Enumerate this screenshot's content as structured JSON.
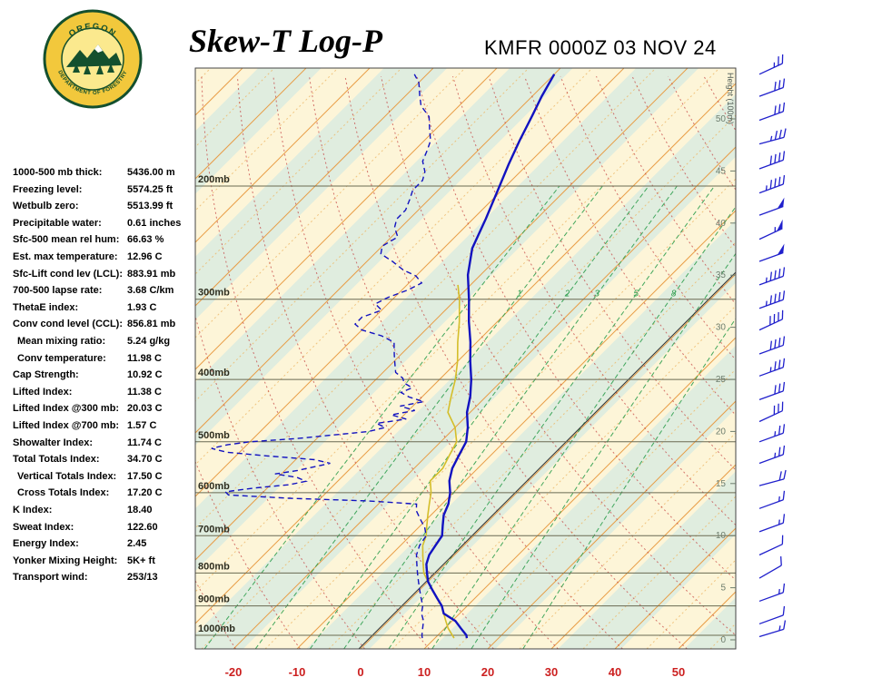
{
  "header": {
    "title": "Skew-T Log-P",
    "station": "KMFR 0000Z 03 NOV 24"
  },
  "logo": {
    "top_text": "OREGON",
    "bottom_text": "DEPARTMENT OF FORESTRY",
    "gold": "#f2c83c",
    "green": "#14502e"
  },
  "indices": [
    {
      "label": "1000-500 mb thick:",
      "value": "5436.00 m",
      "indent": false
    },
    {
      "label": "Freezing level:",
      "value": "5574.25 ft",
      "indent": false
    },
    {
      "label": "Wetbulb zero:",
      "value": "5513.99 ft",
      "indent": false
    },
    {
      "label": "Precipitable water:",
      "value": "0.61 inches",
      "indent": false
    },
    {
      "label": "Sfc-500 mean rel hum:",
      "value": "66.63 %",
      "indent": false
    },
    {
      "label": "Est. max temperature:",
      "value": "12.96 C",
      "indent": false
    },
    {
      "label": "Sfc-Lift cond lev (LCL):",
      "value": "883.91 mb",
      "indent": false
    },
    {
      "label": "700-500 lapse rate:",
      "value": "3.68 C/km",
      "indent": false
    },
    {
      "label": "ThetaE index:",
      "value": "1.93 C",
      "indent": false
    },
    {
      "label": "Conv cond level (CCL):",
      "value": "856.81 mb",
      "indent": false
    },
    {
      "label": "Mean mixing ratio:",
      "value": "5.24 g/kg",
      "indent": true
    },
    {
      "label": "Conv temperature:",
      "value": "11.98 C",
      "indent": true
    },
    {
      "label": "Cap Strength:",
      "value": "10.92 C",
      "indent": false
    },
    {
      "label": "Lifted Index:",
      "value": "11.38 C",
      "indent": false
    },
    {
      "label": "Lifted Index @300 mb:",
      "value": "20.03 C",
      "indent": false
    },
    {
      "label": "Lifted Index @700 mb:",
      "value": "1.57 C",
      "indent": false
    },
    {
      "label": "Showalter Index:",
      "value": "11.74 C",
      "indent": false
    },
    {
      "label": "Total Totals Index:",
      "value": "34.70 C",
      "indent": false
    },
    {
      "label": "Vertical Totals Index:",
      "value": "17.50 C",
      "indent": true
    },
    {
      "label": "Cross Totals Index:",
      "value": "17.20 C",
      "indent": true
    },
    {
      "label": "K Index:",
      "value": "18.40",
      "indent": false
    },
    {
      "label": "Sweat Index:",
      "value": "122.60",
      "indent": false
    },
    {
      "label": "Energy Index:",
      "value": "2.45",
      "indent": false
    },
    {
      "label": "Yonker Mixing Height:",
      "value": "5K+ ft",
      "indent": false
    },
    {
      "label": "Transport wind:",
      "value": "253/13",
      "indent": false
    }
  ],
  "chart_data": {
    "type": "skewt",
    "title": "Skew-T Log-P",
    "subtitle": "KMFR 0000Z 03 NOV 24",
    "pressure_levels": [
      200,
      300,
      400,
      500,
      600,
      700,
      800,
      900,
      1000
    ],
    "pressure_axis_labels": [
      "200mb",
      "300mb",
      "400mb",
      "500mb",
      "600mb",
      "700mb",
      "800mb",
      "900mb",
      "1000mb"
    ],
    "temp_axis": [
      -20,
      -10,
      0,
      10,
      20,
      30,
      40,
      50
    ],
    "height_axis": [
      50,
      45,
      40,
      35,
      30,
      25,
      20,
      15,
      10,
      5,
      0
    ],
    "height_axis_label": "Height (100m)",
    "isotherm_step": 5,
    "dry_adiabats_theta_k": {
      "min": 250,
      "max": 440,
      "step": 10
    },
    "mixing_ratio_lines": [
      0.5,
      1,
      2,
      3,
      5,
      8,
      12,
      20
    ],
    "mixing_ratio_labels": [
      1,
      2,
      3,
      5,
      8
    ],
    "temperature_profile": [
      [
        1010,
        15
      ],
      [
        1000,
        14.5
      ],
      [
        975,
        12.5
      ],
      [
        950,
        10.5
      ],
      [
        925,
        7.5
      ],
      [
        900,
        6
      ],
      [
        875,
        4
      ],
      [
        850,
        2
      ],
      [
        825,
        0
      ],
      [
        800,
        -1.5
      ],
      [
        775,
        -3
      ],
      [
        750,
        -4
      ],
      [
        725,
        -4.5
      ],
      [
        700,
        -5
      ],
      [
        675,
        -6.5
      ],
      [
        650,
        -8
      ],
      [
        625,
        -9
      ],
      [
        600,
        -10.5
      ],
      [
        575,
        -12.5
      ],
      [
        550,
        -14
      ],
      [
        525,
        -15
      ],
      [
        500,
        -16
      ],
      [
        475,
        -18
      ],
      [
        450,
        -20.5
      ],
      [
        425,
        -22.5
      ],
      [
        400,
        -25
      ],
      [
        375,
        -28
      ],
      [
        350,
        -31
      ],
      [
        325,
        -34.5
      ],
      [
        300,
        -38
      ],
      [
        275,
        -42
      ],
      [
        250,
        -45.5
      ],
      [
        225,
        -48
      ],
      [
        200,
        -51
      ],
      [
        185,
        -53
      ],
      [
        170,
        -55
      ],
      [
        155,
        -57
      ],
      [
        145,
        -58.5
      ],
      [
        134,
        -60
      ]
    ],
    "dewpoint_profile": [
      [
        1010,
        8
      ],
      [
        1000,
        7.5
      ],
      [
        975,
        6.5
      ],
      [
        950,
        5.5
      ],
      [
        925,
        4
      ],
      [
        900,
        3
      ],
      [
        875,
        1.5
      ],
      [
        850,
        0
      ],
      [
        825,
        -1.5
      ],
      [
        800,
        -3
      ],
      [
        775,
        -4.5
      ],
      [
        750,
        -6
      ],
      [
        725,
        -7
      ],
      [
        700,
        -7.5
      ],
      [
        680,
        -9
      ],
      [
        660,
        -11
      ],
      [
        640,
        -13
      ],
      [
        625,
        -14
      ],
      [
        618,
        -22
      ],
      [
        612,
        -35
      ],
      [
        605,
        -45
      ],
      [
        598,
        -46
      ],
      [
        590,
        -42
      ],
      [
        583,
        -37
      ],
      [
        576,
        -35
      ],
      [
        568,
        -37
      ],
      [
        561,
        -41
      ],
      [
        554,
        -38
      ],
      [
        547,
        -36
      ],
      [
        540,
        -34
      ],
      [
        533,
        -37
      ],
      [
        526,
        -45
      ],
      [
        519,
        -52
      ],
      [
        512,
        -55
      ],
      [
        505,
        -53
      ],
      [
        500,
        -50
      ],
      [
        494,
        -43
      ],
      [
        488,
        -38
      ],
      [
        482,
        -33
      ],
      [
        475,
        -31
      ],
      [
        468,
        -33
      ],
      [
        461,
        -29
      ],
      [
        454,
        -32
      ],
      [
        447,
        -29
      ],
      [
        440,
        -32
      ],
      [
        433,
        -29
      ],
      [
        426,
        -32
      ],
      [
        419,
        -34
      ],
      [
        412,
        -33
      ],
      [
        405,
        -35
      ],
      [
        398,
        -36
      ],
      [
        390,
        -38
      ],
      [
        382,
        -39
      ],
      [
        374,
        -40
      ],
      [
        366,
        -41
      ],
      [
        358,
        -42
      ],
      [
        350,
        -43
      ],
      [
        342,
        -46
      ],
      [
        335,
        -50
      ],
      [
        328,
        -52
      ],
      [
        320,
        -52
      ],
      [
        312,
        -50
      ],
      [
        305,
        -52
      ],
      [
        298,
        -51
      ],
      [
        290,
        -49
      ],
      [
        283,
        -48
      ],
      [
        276,
        -50
      ],
      [
        270,
        -53
      ],
      [
        262,
        -56
      ],
      [
        255,
        -59
      ],
      [
        248,
        -60
      ],
      [
        240,
        -59
      ],
      [
        232,
        -61
      ],
      [
        225,
        -62
      ],
      [
        218,
        -62
      ],
      [
        210,
        -63
      ],
      [
        203,
        -64
      ],
      [
        196,
        -64
      ],
      [
        190,
        -65
      ],
      [
        183,
        -67
      ],
      [
        176,
        -68
      ],
      [
        170,
        -69
      ],
      [
        163,
        -71
      ],
      [
        156,
        -73
      ],
      [
        150,
        -76
      ],
      [
        144,
        -78
      ],
      [
        138,
        -80
      ],
      [
        134,
        -82
      ]
    ],
    "wetbulb_profile": [
      [
        1010,
        13
      ],
      [
        975,
        10.5
      ],
      [
        950,
        9
      ],
      [
        925,
        7.5
      ],
      [
        900,
        6
      ],
      [
        875,
        4
      ],
      [
        850,
        2
      ],
      [
        825,
        0
      ],
      [
        800,
        -2
      ],
      [
        775,
        -3.5
      ],
      [
        750,
        -5
      ],
      [
        725,
        -6.5
      ],
      [
        700,
        -7.5
      ],
      [
        675,
        -9
      ],
      [
        650,
        -10.5
      ],
      [
        625,
        -12
      ],
      [
        600,
        -13.5
      ],
      [
        575,
        -15.5
      ],
      [
        550,
        -15.5
      ],
      [
        525,
        -16.5
      ],
      [
        500,
        -17.5
      ],
      [
        475,
        -20
      ],
      [
        450,
        -23.5
      ],
      [
        425,
        -25.5
      ],
      [
        400,
        -27.5
      ],
      [
        375,
        -30
      ],
      [
        350,
        -33
      ],
      [
        325,
        -36
      ],
      [
        300,
        -39.5
      ],
      [
        285,
        -42
      ]
    ],
    "winds": [
      {
        "p": 134,
        "spd": 25,
        "dir": 245
      },
      {
        "p": 145,
        "spd": 30,
        "dir": 250
      },
      {
        "p": 158,
        "spd": 30,
        "dir": 250
      },
      {
        "p": 172,
        "spd": 35,
        "dir": 255
      },
      {
        "p": 188,
        "spd": 40,
        "dir": 250
      },
      {
        "p": 205,
        "spd": 45,
        "dir": 250
      },
      {
        "p": 222,
        "spd": 50,
        "dir": 250
      },
      {
        "p": 242,
        "spd": 55,
        "dir": 245
      },
      {
        "p": 262,
        "spd": 50,
        "dir": 250
      },
      {
        "p": 285,
        "spd": 45,
        "dir": 250
      },
      {
        "p": 310,
        "spd": 45,
        "dir": 250
      },
      {
        "p": 335,
        "spd": 40,
        "dir": 245
      },
      {
        "p": 365,
        "spd": 40,
        "dir": 250
      },
      {
        "p": 395,
        "spd": 35,
        "dir": 250
      },
      {
        "p": 430,
        "spd": 30,
        "dir": 250
      },
      {
        "p": 465,
        "spd": 30,
        "dir": 245
      },
      {
        "p": 500,
        "spd": 25,
        "dir": 250
      },
      {
        "p": 540,
        "spd": 25,
        "dir": 250
      },
      {
        "p": 585,
        "spd": 20,
        "dir": 255
      },
      {
        "p": 635,
        "spd": 15,
        "dir": 250
      },
      {
        "p": 690,
        "spd": 15,
        "dir": 250
      },
      {
        "p": 750,
        "spd": 10,
        "dir": 245
      },
      {
        "p": 815,
        "spd": 10,
        "dir": 240
      },
      {
        "p": 885,
        "spd": 15,
        "dir": 250
      },
      {
        "p": 960,
        "spd": 10,
        "dir": 250
      },
      {
        "p": 1005,
        "spd": 13,
        "dir": 253
      }
    ],
    "colors": {
      "isotherm": "#e89a40",
      "isotherm_minor": "#edb869",
      "dry_adiabat": "#c23b3b",
      "mixing_ratio": "#2f9e4f",
      "trace": "#1212c0",
      "wetbulb": "#d4be2a",
      "wind": "#2020cc",
      "axis_label": "#cc2020",
      "band_cream": "#fdf5d8",
      "band_green": "#e0eddf"
    }
  }
}
